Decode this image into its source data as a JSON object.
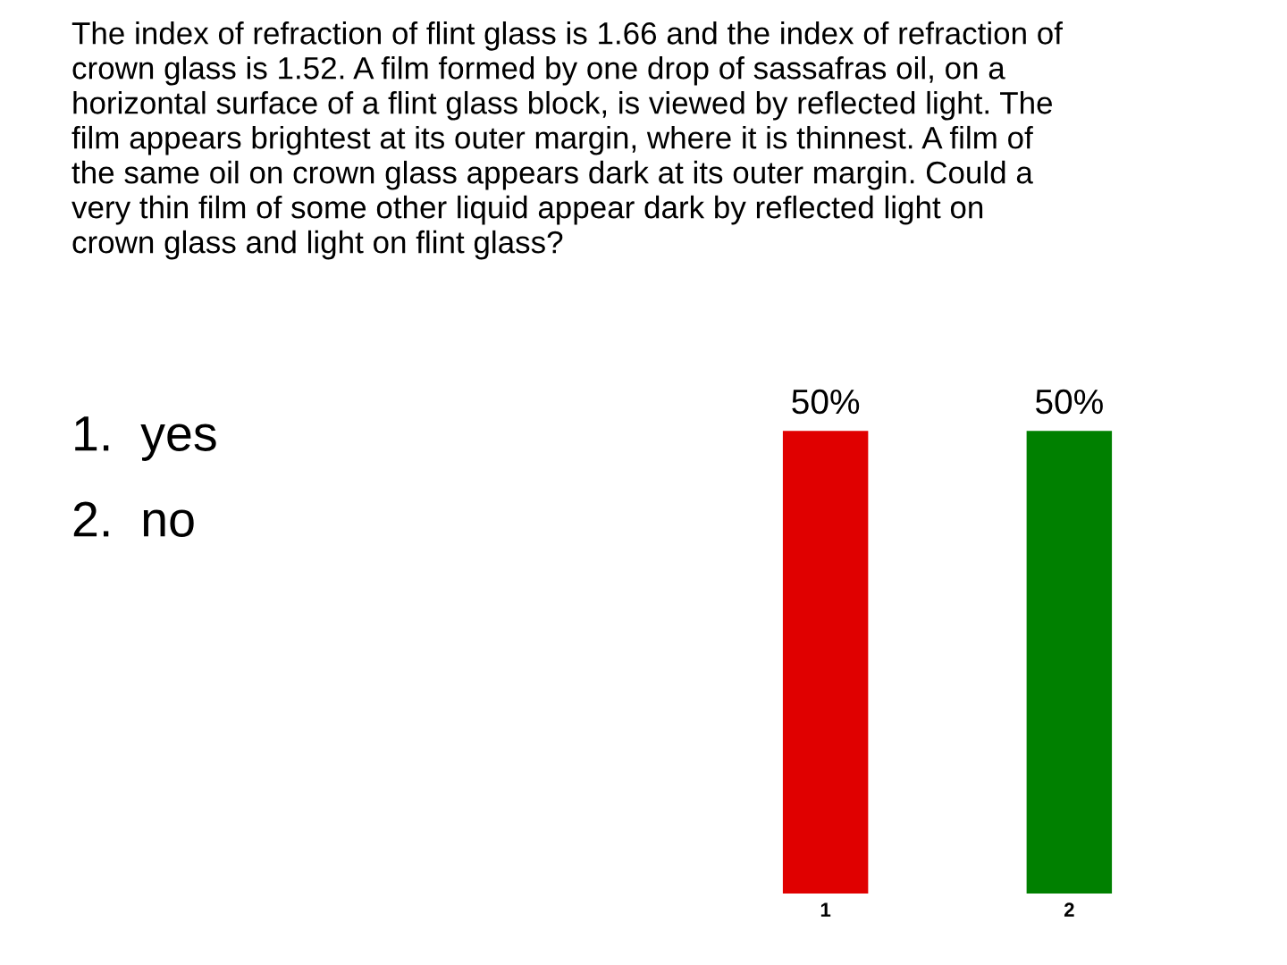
{
  "chart_data": {
    "type": "bar",
    "title": "The index of refraction of flint glass is 1.66 and the index of refraction of\ncrown glass is 1.52. A film formed by one drop of sassafras oil, on a\nhorizontal surface of a flint glass block, is viewed by reflected light. The\nfilm appears brightest at its outer margin, where it is thinnest. A film of\nthe same oil on crown glass appears dark at its outer margin. Could a\nvery thin film of some other liquid appear dark by reflected light on\ncrown glass and light on flint glass?",
    "annotations": [
      "1.  yes",
      "2.  no"
    ],
    "categories": [
      "1",
      "2"
    ],
    "values": [
      50,
      50
    ],
    "colors": [
      "#e00000",
      "#008000"
    ],
    "value_labels": [
      "50%",
      "50%"
    ],
    "grid": false,
    "legend": false
  }
}
